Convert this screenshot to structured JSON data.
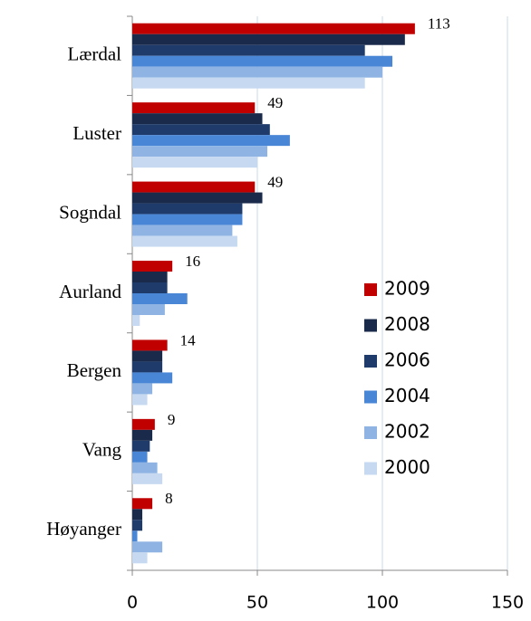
{
  "chart_data": {
    "type": "hbar",
    "categories": [
      "Lærdal",
      "Luster",
      "Sogndal",
      "Aurland",
      "Bergen",
      "Vang",
      "Høyanger"
    ],
    "series": [
      {
        "name": "2009",
        "color": "#c00000",
        "values": [
          113,
          49,
          49,
          16,
          14,
          9,
          8
        ],
        "show_labels": true
      },
      {
        "name": "2008",
        "color": "#1a2a4a",
        "values": [
          109,
          52,
          52,
          14,
          12,
          8,
          4
        ]
      },
      {
        "name": "2006",
        "color": "#1f3b6b",
        "values": [
          93,
          55,
          44,
          14,
          12,
          7,
          4
        ]
      },
      {
        "name": "2004",
        "color": "#4a86d6",
        "values": [
          104,
          63,
          44,
          22,
          16,
          6,
          2
        ]
      },
      {
        "name": "2002",
        "color": "#8fb4e3",
        "values": [
          100,
          54,
          40,
          13,
          8,
          10,
          12
        ]
      },
      {
        "name": "2000",
        "color": "#c6d9f1",
        "values": [
          93,
          50,
          42,
          3,
          6,
          12,
          6
        ]
      }
    ],
    "xlim": [
      0,
      150
    ],
    "xticks": [
      0,
      50,
      100,
      150
    ],
    "grid": true,
    "legend": "right"
  }
}
